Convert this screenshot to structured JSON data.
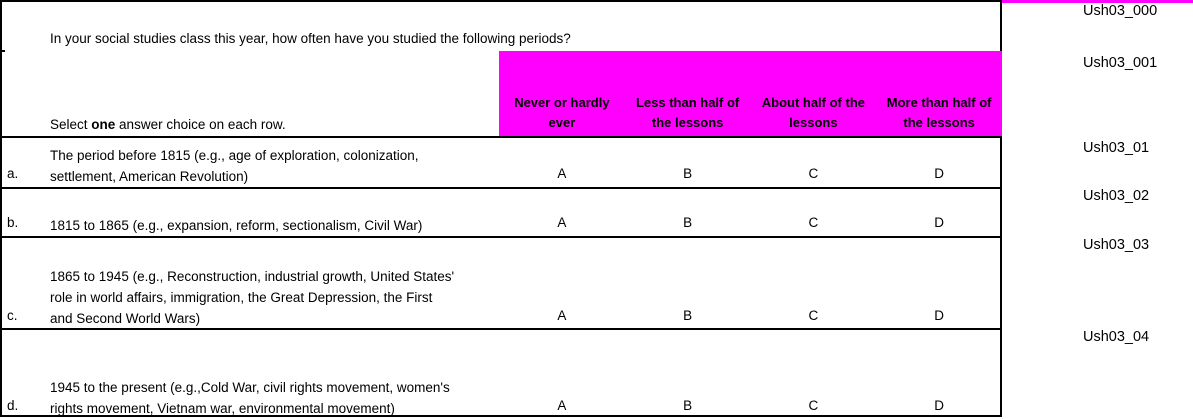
{
  "question": {
    "text": "In your social studies class this year, how often have you studied the following periods?",
    "instruction": {
      "prefix": "Select ",
      "bold": "one",
      "suffix": " answer choice on each row."
    }
  },
  "answer_scale": {
    "background_color": "#ff00ff",
    "columns": [
      "Never or hardly\never",
      "Less than half of\nthe lessons",
      "About half of the\nlessons",
      "More than half of\nthe lessons"
    ]
  },
  "rows": [
    {
      "label": "a.",
      "text": "The period before 1815 (e.g., age of exploration, colonization,\nsettlement, American Revolution)",
      "choices": [
        "A",
        "B",
        "C",
        "D"
      ]
    },
    {
      "label": "b.",
      "text": "1815 to 1865 (e.g., expansion, reform, sectionalism, Civil War)",
      "choices": [
        "A",
        "B",
        "C",
        "D"
      ]
    },
    {
      "label": "c.",
      "text": "1865 to 1945 (e.g., Reconstruction, industrial growth, United States'\nrole in world affairs, immigration, the Great Depression, the First\nand Second World Wars)",
      "choices": [
        "A",
        "B",
        "C",
        "D"
      ]
    },
    {
      "label": "d.",
      "text": "1945 to the present (e.g.,Cold War, civil rights movement, women's\nrights movement, Vietnam war, environmental movement)",
      "choices": [
        "A",
        "B",
        "C",
        "D"
      ]
    }
  ],
  "codes": {
    "accent_color": "#ff00ff",
    "items": [
      "Ush03_000",
      "Ush03_001",
      "Ush03_01",
      "Ush03_02",
      "Ush03_03",
      "Ush03_04"
    ]
  }
}
